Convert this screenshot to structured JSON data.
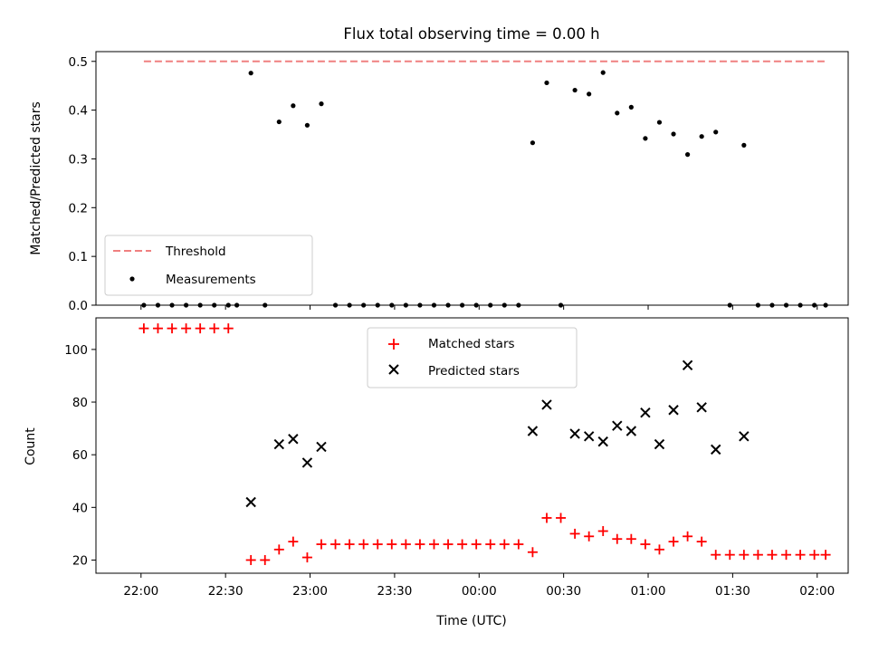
{
  "chart_data": [
    {
      "type": "scatter",
      "title": "Flux total observing time = 0.00 h",
      "ylabel": "Matched/Predicted stars",
      "ylim": [
        0,
        0.52
      ],
      "yticks": [
        "0.0",
        "0.1",
        "0.2",
        "0.3",
        "0.4",
        "0.5"
      ],
      "threshold": {
        "name": "Threshold",
        "value": 0.5,
        "x_range": [
          "22:01",
          "02:03"
        ],
        "color": "#f08080",
        "style": "dashed"
      },
      "legend": {
        "placement": "lower-left",
        "entries": [
          "Threshold",
          "Measurements"
        ]
      },
      "series": [
        {
          "name": "Measurements",
          "color": "#000000",
          "marker": "dot",
          "points": [
            [
              "22:01",
              0
            ],
            [
              "22:06",
              0
            ],
            [
              "22:11",
              0
            ],
            [
              "22:16",
              0
            ],
            [
              "22:21",
              0
            ],
            [
              "22:26",
              0
            ],
            [
              "22:31",
              0
            ],
            [
              "22:34",
              0
            ],
            [
              "22:39",
              0.476
            ],
            [
              "22:44",
              0
            ],
            [
              "22:49",
              0.376
            ],
            [
              "22:54",
              0.409
            ],
            [
              "22:59",
              0.369
            ],
            [
              "23:04",
              0.413
            ],
            [
              "23:09",
              0
            ],
            [
              "23:14",
              0
            ],
            [
              "23:19",
              0
            ],
            [
              "23:24",
              0
            ],
            [
              "23:29",
              0
            ],
            [
              "23:34",
              0
            ],
            [
              "23:39",
              0
            ],
            [
              "23:44",
              0
            ],
            [
              "23:49",
              0
            ],
            [
              "23:54",
              0
            ],
            [
              "23:59",
              0
            ],
            [
              "00:04",
              0
            ],
            [
              "00:09",
              0
            ],
            [
              "00:14",
              0
            ],
            [
              "00:19",
              0.333
            ],
            [
              "00:24",
              0.456
            ],
            [
              "00:29",
              0
            ],
            [
              "00:34",
              0.441
            ],
            [
              "00:39",
              0.433
            ],
            [
              "00:44",
              0.477
            ],
            [
              "00:49",
              0.394
            ],
            [
              "00:54",
              0.406
            ],
            [
              "00:59",
              0.342
            ],
            [
              "01:04",
              0.375
            ],
            [
              "01:09",
              0.351
            ],
            [
              "01:14",
              0.309
            ],
            [
              "01:19",
              0.346
            ],
            [
              "01:24",
              0.355
            ],
            [
              "01:29",
              0
            ],
            [
              "01:34",
              0.328
            ],
            [
              "01:39",
              0
            ],
            [
              "01:44",
              0
            ],
            [
              "01:49",
              0
            ],
            [
              "01:54",
              0
            ],
            [
              "01:59",
              0
            ],
            [
              "02:03",
              0
            ]
          ]
        }
      ]
    },
    {
      "type": "scatter",
      "xlabel": "Time (UTC)",
      "ylabel": "Count",
      "ylim": [
        15,
        112
      ],
      "yticks": [
        "20",
        "40",
        "60",
        "80",
        "100"
      ],
      "xticks": [
        "22:00",
        "22:30",
        "23:00",
        "23:30",
        "00:00",
        "00:30",
        "01:00",
        "01:30",
        "02:00"
      ],
      "legend": {
        "placement": "upper-center",
        "entries": [
          "Matched stars",
          "Predicted stars"
        ]
      },
      "series": [
        {
          "name": "Matched stars",
          "color": "#ff0000",
          "marker": "plus",
          "points": [
            [
              "22:01",
              108
            ],
            [
              "22:06",
              108
            ],
            [
              "22:11",
              108
            ],
            [
              "22:16",
              108
            ],
            [
              "22:21",
              108
            ],
            [
              "22:26",
              108
            ],
            [
              "22:31",
              108
            ],
            [
              "22:39",
              20
            ],
            [
              "22:44",
              20
            ],
            [
              "22:49",
              24
            ],
            [
              "22:54",
              27
            ],
            [
              "22:59",
              21
            ],
            [
              "23:04",
              26
            ],
            [
              "23:09",
              26
            ],
            [
              "23:14",
              26
            ],
            [
              "23:19",
              26
            ],
            [
              "23:24",
              26
            ],
            [
              "23:29",
              26
            ],
            [
              "23:34",
              26
            ],
            [
              "23:39",
              26
            ],
            [
              "23:44",
              26
            ],
            [
              "23:49",
              26
            ],
            [
              "23:54",
              26
            ],
            [
              "23:59",
              26
            ],
            [
              "00:04",
              26
            ],
            [
              "00:09",
              26
            ],
            [
              "00:14",
              26
            ],
            [
              "00:19",
              23
            ],
            [
              "00:24",
              36
            ],
            [
              "00:29",
              36
            ],
            [
              "00:34",
              30
            ],
            [
              "00:39",
              29
            ],
            [
              "00:44",
              31
            ],
            [
              "00:49",
              28
            ],
            [
              "00:54",
              28
            ],
            [
              "00:59",
              26
            ],
            [
              "01:04",
              24
            ],
            [
              "01:09",
              27
            ],
            [
              "01:14",
              29
            ],
            [
              "01:19",
              27
            ],
            [
              "01:24",
              22
            ],
            [
              "01:29",
              22
            ],
            [
              "01:34",
              22
            ],
            [
              "01:39",
              22
            ],
            [
              "01:44",
              22
            ],
            [
              "01:49",
              22
            ],
            [
              "01:54",
              22
            ],
            [
              "01:59",
              22
            ],
            [
              "02:03",
              22
            ]
          ]
        },
        {
          "name": "Predicted stars",
          "color": "#000000",
          "marker": "x",
          "points": [
            [
              "22:39",
              42
            ],
            [
              "22:49",
              64
            ],
            [
              "22:54",
              66
            ],
            [
              "22:59",
              57
            ],
            [
              "23:04",
              63
            ],
            [
              "00:19",
              69
            ],
            [
              "00:24",
              79
            ],
            [
              "00:34",
              68
            ],
            [
              "00:39",
              67
            ],
            [
              "00:44",
              65
            ],
            [
              "00:49",
              71
            ],
            [
              "00:54",
              69
            ],
            [
              "00:59",
              76
            ],
            [
              "01:04",
              64
            ],
            [
              "01:09",
              77
            ],
            [
              "01:14",
              94
            ],
            [
              "01:19",
              78
            ],
            [
              "01:24",
              62
            ],
            [
              "01:34",
              67
            ]
          ]
        }
      ]
    }
  ]
}
